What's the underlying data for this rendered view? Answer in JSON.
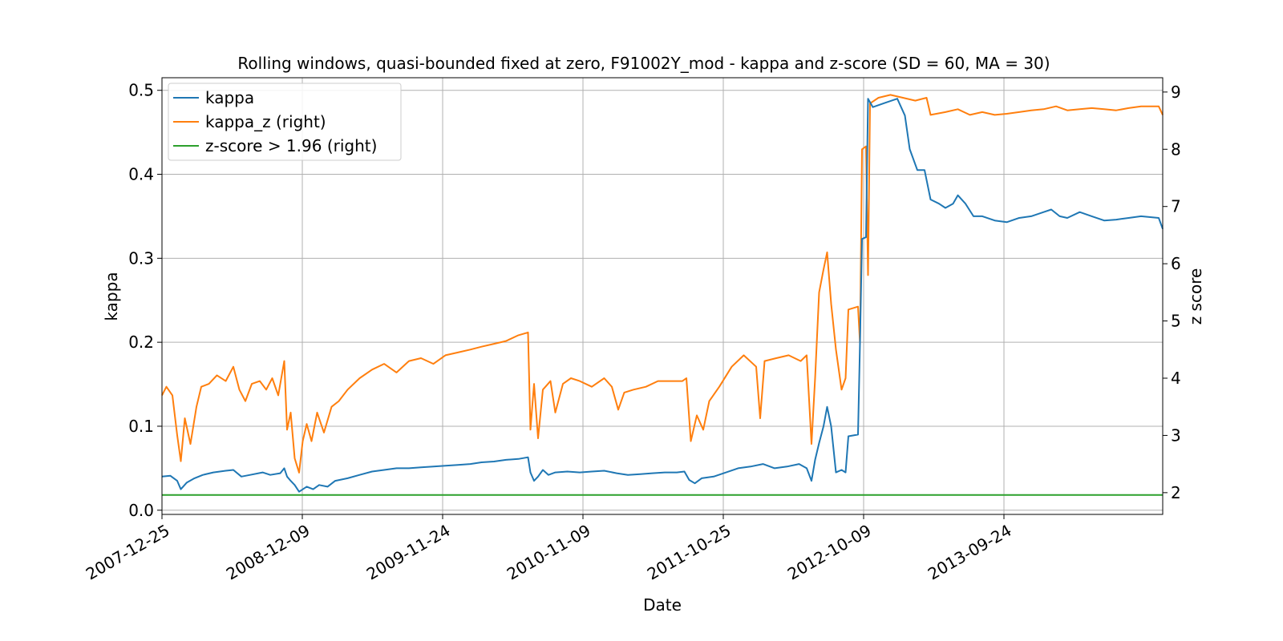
{
  "chart_data": {
    "type": "line",
    "title": "Rolling windows, quasi-bounded fixed at zero, F91002Y_mod - kappa and z-score (SD = 60, MA = 30)",
    "xlabel": "Date",
    "ylabel": "kappa",
    "y2label": "z score",
    "grid": true,
    "legend_position": "top-left",
    "x_tick_labels": [
      "2007-12-25",
      "2008-12-09",
      "2009-11-24",
      "2010-11-09",
      "2011-10-25",
      "2012-10-09",
      "2013-09-24"
    ],
    "xlim": [
      "2007-12-25",
      "2014-10-25"
    ],
    "ylim": [
      -0.005,
      0.515
    ],
    "y2lim": [
      1.62,
      9.25
    ],
    "y_ticks": [
      0.0,
      0.1,
      0.2,
      0.3,
      0.4,
      0.5
    ],
    "y2_ticks": [
      2,
      3,
      4,
      5,
      6,
      7,
      8,
      9
    ],
    "series": [
      {
        "name": "kappa",
        "axis": "left",
        "color": "#1f77b4",
        "points": [
          [
            "2007-12-25",
            0.04
          ],
          [
            "2008-01-15",
            0.041
          ],
          [
            "2008-02-01",
            0.035
          ],
          [
            "2008-02-10",
            0.025
          ],
          [
            "2008-02-25",
            0.033
          ],
          [
            "2008-03-15",
            0.038
          ],
          [
            "2008-04-05",
            0.042
          ],
          [
            "2008-05-01",
            0.045
          ],
          [
            "2008-06-01",
            0.047
          ],
          [
            "2008-06-20",
            0.048
          ],
          [
            "2008-07-10",
            0.04
          ],
          [
            "2008-08-01",
            0.042
          ],
          [
            "2008-09-01",
            0.045
          ],
          [
            "2008-09-20",
            0.042
          ],
          [
            "2008-10-15",
            0.044
          ],
          [
            "2008-10-25",
            0.05
          ],
          [
            "2008-11-01",
            0.04
          ],
          [
            "2008-11-10",
            0.035
          ],
          [
            "2008-11-20",
            0.03
          ],
          [
            "2008-12-01",
            0.022
          ],
          [
            "2008-12-20",
            0.028
          ],
          [
            "2009-01-05",
            0.025
          ],
          [
            "2009-01-20",
            0.03
          ],
          [
            "2009-02-10",
            0.028
          ],
          [
            "2009-03-01",
            0.035
          ],
          [
            "2009-04-01",
            0.038
          ],
          [
            "2009-05-01",
            0.042
          ],
          [
            "2009-06-01",
            0.046
          ],
          [
            "2009-07-01",
            0.048
          ],
          [
            "2009-08-01",
            0.05
          ],
          [
            "2009-09-01",
            0.05
          ],
          [
            "2009-10-01",
            0.051
          ],
          [
            "2009-11-01",
            0.052
          ],
          [
            "2009-12-01",
            0.053
          ],
          [
            "2010-01-01",
            0.054
          ],
          [
            "2010-02-01",
            0.055
          ],
          [
            "2010-03-01",
            0.057
          ],
          [
            "2010-04-01",
            0.058
          ],
          [
            "2010-05-01",
            0.06
          ],
          [
            "2010-06-01",
            0.061
          ],
          [
            "2010-06-25",
            0.063
          ],
          [
            "2010-07-01",
            0.045
          ],
          [
            "2010-07-10",
            0.035
          ],
          [
            "2010-07-20",
            0.04
          ],
          [
            "2010-08-01",
            0.048
          ],
          [
            "2010-08-15",
            0.042
          ],
          [
            "2010-09-01",
            0.045
          ],
          [
            "2010-10-01",
            0.046
          ],
          [
            "2010-11-01",
            0.045
          ],
          [
            "2010-12-01",
            0.046
          ],
          [
            "2011-01-01",
            0.047
          ],
          [
            "2011-02-01",
            0.044
          ],
          [
            "2011-03-01",
            0.042
          ],
          [
            "2011-04-01",
            0.043
          ],
          [
            "2011-05-01",
            0.044
          ],
          [
            "2011-06-01",
            0.045
          ],
          [
            "2011-07-01",
            0.045
          ],
          [
            "2011-07-20",
            0.046
          ],
          [
            "2011-08-01",
            0.036
          ],
          [
            "2011-08-15",
            0.032
          ],
          [
            "2011-09-01",
            0.038
          ],
          [
            "2011-10-01",
            0.04
          ],
          [
            "2011-11-01",
            0.045
          ],
          [
            "2011-12-01",
            0.05
          ],
          [
            "2012-01-01",
            0.052
          ],
          [
            "2012-02-01",
            0.055
          ],
          [
            "2012-03-01",
            0.05
          ],
          [
            "2012-04-01",
            0.052
          ],
          [
            "2012-05-01",
            0.055
          ],
          [
            "2012-05-20",
            0.05
          ],
          [
            "2012-06-01",
            0.035
          ],
          [
            "2012-06-10",
            0.06
          ],
          [
            "2012-06-20",
            0.08
          ],
          [
            "2012-07-01",
            0.1
          ],
          [
            "2012-07-10",
            0.123
          ],
          [
            "2012-07-20",
            0.1
          ],
          [
            "2012-08-01",
            0.045
          ],
          [
            "2012-08-15",
            0.048
          ],
          [
            "2012-08-25",
            0.045
          ],
          [
            "2012-09-01",
            0.088
          ],
          [
            "2012-09-25",
            0.09
          ],
          [
            "2012-09-30",
            0.2
          ],
          [
            "2012-10-05",
            0.323
          ],
          [
            "2012-10-15",
            0.325
          ],
          [
            "2012-10-20",
            0.49
          ],
          [
            "2012-11-01",
            0.48
          ],
          [
            "2012-12-01",
            0.485
          ],
          [
            "2013-01-01",
            0.49
          ],
          [
            "2013-01-20",
            0.47
          ],
          [
            "2013-02-01",
            0.43
          ],
          [
            "2013-02-20",
            0.405
          ],
          [
            "2013-03-10",
            0.405
          ],
          [
            "2013-03-25",
            0.37
          ],
          [
            "2013-04-15",
            0.365
          ],
          [
            "2013-05-01",
            0.36
          ],
          [
            "2013-05-20",
            0.365
          ],
          [
            "2013-06-01",
            0.375
          ],
          [
            "2013-06-20",
            0.365
          ],
          [
            "2013-07-10",
            0.35
          ],
          [
            "2013-08-01",
            0.35
          ],
          [
            "2013-09-01",
            0.345
          ],
          [
            "2013-10-01",
            0.343
          ],
          [
            "2013-11-01",
            0.348
          ],
          [
            "2013-12-01",
            0.35
          ],
          [
            "2014-01-01",
            0.355
          ],
          [
            "2014-01-20",
            0.358
          ],
          [
            "2014-02-10",
            0.35
          ],
          [
            "2014-03-01",
            0.348
          ],
          [
            "2014-04-01",
            0.355
          ],
          [
            "2014-05-01",
            0.35
          ],
          [
            "2014-06-01",
            0.345
          ],
          [
            "2014-07-01",
            0.346
          ],
          [
            "2014-08-01",
            0.348
          ],
          [
            "2014-09-01",
            0.35
          ],
          [
            "2014-10-15",
            0.348
          ],
          [
            "2014-10-25",
            0.335
          ]
        ]
      },
      {
        "name": "kappa_z (right)",
        "axis": "right",
        "color": "#ff7f0e",
        "points": [
          [
            "2007-12-25",
            3.7
          ],
          [
            "2008-01-05",
            3.85
          ],
          [
            "2008-01-20",
            3.7
          ],
          [
            "2008-02-01",
            3.0
          ],
          [
            "2008-02-10",
            2.55
          ],
          [
            "2008-02-20",
            3.3
          ],
          [
            "2008-03-05",
            2.85
          ],
          [
            "2008-03-20",
            3.5
          ],
          [
            "2008-04-01",
            3.85
          ],
          [
            "2008-04-20",
            3.9
          ],
          [
            "2008-05-10",
            4.05
          ],
          [
            "2008-06-01",
            3.95
          ],
          [
            "2008-06-20",
            4.2
          ],
          [
            "2008-07-05",
            3.8
          ],
          [
            "2008-07-20",
            3.6
          ],
          [
            "2008-08-05",
            3.9
          ],
          [
            "2008-08-25",
            3.95
          ],
          [
            "2008-09-10",
            3.8
          ],
          [
            "2008-09-25",
            4.0
          ],
          [
            "2008-10-10",
            3.7
          ],
          [
            "2008-10-25",
            4.3
          ],
          [
            "2008-11-01",
            3.1
          ],
          [
            "2008-11-10",
            3.4
          ],
          [
            "2008-11-20",
            2.6
          ],
          [
            "2008-12-01",
            2.35
          ],
          [
            "2008-12-10",
            2.9
          ],
          [
            "2008-12-20",
            3.2
          ],
          [
            "2009-01-01",
            2.9
          ],
          [
            "2009-01-15",
            3.4
          ],
          [
            "2009-02-01",
            3.05
          ],
          [
            "2009-02-20",
            3.5
          ],
          [
            "2009-03-10",
            3.6
          ],
          [
            "2009-04-01",
            3.8
          ],
          [
            "2009-05-01",
            4.0
          ],
          [
            "2009-06-01",
            4.15
          ],
          [
            "2009-07-01",
            4.25
          ],
          [
            "2009-08-01",
            4.1
          ],
          [
            "2009-09-01",
            4.3
          ],
          [
            "2009-10-01",
            4.35
          ],
          [
            "2009-11-01",
            4.25
          ],
          [
            "2009-12-01",
            4.4
          ],
          [
            "2010-01-01",
            4.45
          ],
          [
            "2010-02-01",
            4.5
          ],
          [
            "2010-03-01",
            4.55
          ],
          [
            "2010-04-01",
            4.6
          ],
          [
            "2010-05-01",
            4.65
          ],
          [
            "2010-06-01",
            4.75
          ],
          [
            "2010-06-25",
            4.8
          ],
          [
            "2010-07-01",
            3.1
          ],
          [
            "2010-07-10",
            3.9
          ],
          [
            "2010-07-20",
            2.95
          ],
          [
            "2010-08-01",
            3.8
          ],
          [
            "2010-08-20",
            3.95
          ],
          [
            "2010-09-01",
            3.4
          ],
          [
            "2010-09-20",
            3.9
          ],
          [
            "2010-10-10",
            4.0
          ],
          [
            "2010-11-01",
            3.95
          ],
          [
            "2010-12-01",
            3.85
          ],
          [
            "2011-01-01",
            4.0
          ],
          [
            "2011-01-20",
            3.85
          ],
          [
            "2011-02-05",
            3.45
          ],
          [
            "2011-02-20",
            3.75
          ],
          [
            "2011-03-15",
            3.8
          ],
          [
            "2011-04-15",
            3.85
          ],
          [
            "2011-05-15",
            3.95
          ],
          [
            "2011-06-15",
            3.95
          ],
          [
            "2011-07-15",
            3.95
          ],
          [
            "2011-07-25",
            4.0
          ],
          [
            "2011-08-05",
            2.9
          ],
          [
            "2011-08-20",
            3.35
          ],
          [
            "2011-09-05",
            3.1
          ],
          [
            "2011-09-20",
            3.6
          ],
          [
            "2011-10-15",
            3.85
          ],
          [
            "2011-11-15",
            4.2
          ],
          [
            "2011-12-15",
            4.4
          ],
          [
            "2012-01-15",
            4.2
          ],
          [
            "2012-01-25",
            3.3
          ],
          [
            "2012-02-05",
            4.3
          ],
          [
            "2012-03-05",
            4.35
          ],
          [
            "2012-04-05",
            4.4
          ],
          [
            "2012-05-05",
            4.3
          ],
          [
            "2012-05-20",
            4.4
          ],
          [
            "2012-06-01",
            2.85
          ],
          [
            "2012-06-10",
            4.0
          ],
          [
            "2012-06-20",
            5.5
          ],
          [
            "2012-07-01",
            5.9
          ],
          [
            "2012-07-10",
            6.2
          ],
          [
            "2012-07-20",
            5.3
          ],
          [
            "2012-08-01",
            4.5
          ],
          [
            "2012-08-15",
            3.8
          ],
          [
            "2012-08-25",
            4.0
          ],
          [
            "2012-09-01",
            5.2
          ],
          [
            "2012-09-25",
            5.25
          ],
          [
            "2012-09-30",
            4.6
          ],
          [
            "2012-10-05",
            8.0
          ],
          [
            "2012-10-15",
            8.05
          ],
          [
            "2012-10-20",
            5.8
          ],
          [
            "2012-10-25",
            8.8
          ],
          [
            "2012-11-15",
            8.9
          ],
          [
            "2012-12-15",
            8.95
          ],
          [
            "2013-01-15",
            8.9
          ],
          [
            "2013-02-15",
            8.85
          ],
          [
            "2013-03-15",
            8.9
          ],
          [
            "2013-03-25",
            8.6
          ],
          [
            "2013-05-01",
            8.65
          ],
          [
            "2013-06-01",
            8.7
          ],
          [
            "2013-07-01",
            8.6
          ],
          [
            "2013-08-01",
            8.65
          ],
          [
            "2013-09-01",
            8.6
          ],
          [
            "2013-10-01",
            8.62
          ],
          [
            "2013-11-01",
            8.65
          ],
          [
            "2013-12-01",
            8.68
          ],
          [
            "2014-01-01",
            8.7
          ],
          [
            "2014-02-01",
            8.75
          ],
          [
            "2014-03-01",
            8.68
          ],
          [
            "2014-04-01",
            8.7
          ],
          [
            "2014-05-01",
            8.72
          ],
          [
            "2014-06-01",
            8.7
          ],
          [
            "2014-07-01",
            8.68
          ],
          [
            "2014-08-01",
            8.72
          ],
          [
            "2014-09-01",
            8.75
          ],
          [
            "2014-10-15",
            8.75
          ],
          [
            "2014-10-25",
            8.6
          ]
        ]
      },
      {
        "name": "z-score > 1.96 (right)",
        "axis": "right",
        "color": "#2ca02c",
        "points": [
          [
            "2007-12-25",
            1.96
          ],
          [
            "2014-10-25",
            1.96
          ]
        ]
      }
    ]
  }
}
